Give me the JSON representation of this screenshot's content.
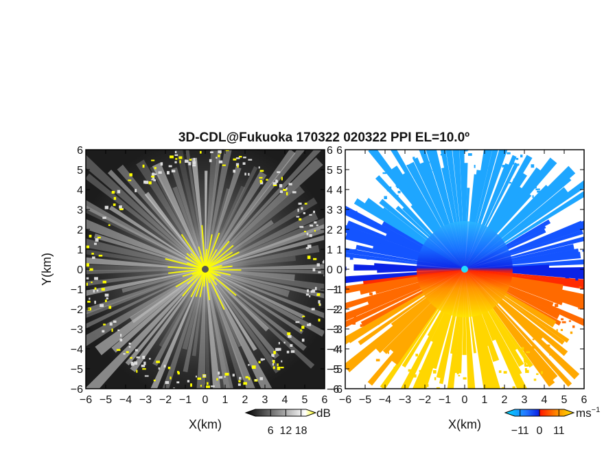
{
  "title": "3D-CDL@Fukuoka 170322 020322 PPI EL=10.0º",
  "chart_data": [
    {
      "type": "heatmap",
      "panel": "left",
      "quantity": "SNR",
      "xlabel": "X(km)",
      "ylabel": "Y(km)",
      "xlim": [
        -6,
        6
      ],
      "ylim": [
        -6,
        6
      ],
      "xticks": [
        "−6",
        "−5",
        "−4",
        "−3",
        "−2",
        "−1",
        "0",
        "1",
        "2",
        "3",
        "4",
        "5",
        "6"
      ],
      "yticks": [
        "−6",
        "−5",
        "−4",
        "−3",
        "−2",
        "−1",
        "0",
        "1",
        "2",
        "3",
        "4",
        "5",
        "6"
      ],
      "grid": false,
      "colormap": [
        "#000000",
        "#ffffff",
        "#ffff00"
      ],
      "radar_center": [
        0,
        0
      ],
      "colorbar": {
        "unit": "dB",
        "ticks": [
          "6",
          "12",
          "18"
        ],
        "range": [
          0,
          20
        ]
      }
    },
    {
      "type": "heatmap",
      "panel": "right",
      "quantity": "Doppler velocity",
      "xlabel": "X(km)",
      "xlim": [
        -6,
        6
      ],
      "ylim": [
        -6,
        6
      ],
      "xticks": [
        "−6",
        "−5",
        "−4",
        "−3",
        "−2",
        "−1",
        "0",
        "1",
        "2",
        "3",
        "4",
        "5",
        "6"
      ],
      "yticks": [
        "−6",
        "−5",
        "−4",
        "−3",
        "−2",
        "−1",
        "0",
        "1",
        "2",
        "3",
        "4",
        "5",
        "6"
      ],
      "grid": false,
      "colormap": [
        "#00c8ff",
        "#0a2dff",
        "#ff1a00",
        "#ffea00"
      ],
      "radar_center": [
        0,
        0
      ],
      "colorbar": {
        "unit": "ms",
        "unit_sup": "−1",
        "ticks": [
          "−11",
          "0",
          "11"
        ],
        "range": [
          -14,
          14
        ]
      }
    }
  ]
}
